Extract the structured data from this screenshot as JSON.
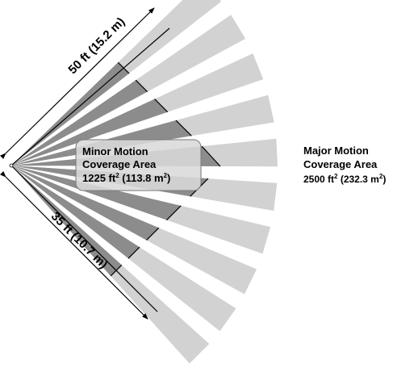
{
  "diagram": {
    "dimension_long": "50 ft (15.2 m)",
    "dimension_short": "35 ft (10.7 m)",
    "minor": {
      "line1": "Minor Motion",
      "line2": "Coverage Area",
      "value_prefix": "1225 ft",
      "value_mid": " (113.8 m",
      "value_suffix": ")",
      "superscript": "2"
    },
    "major": {
      "line1": "Major Motion",
      "line2": "Coverage Area",
      "value_prefix": "2500 ft",
      "value_mid": " (232.3 m",
      "value_suffix": ")",
      "superscript": "2"
    },
    "colors": {
      "inner_zone": "#8c8c8c",
      "outer_zone": "#d2d2d2",
      "lines": "#000000"
    }
  }
}
